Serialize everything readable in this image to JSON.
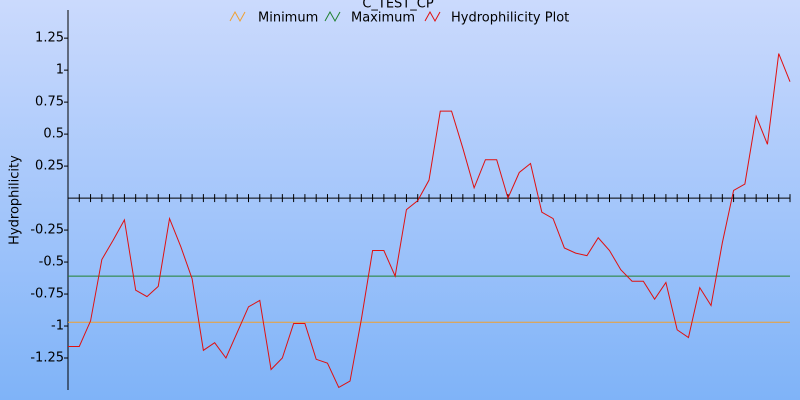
{
  "chart_data": {
    "type": "line",
    "title": "C_TEST_CP",
    "y_label": "Hydrophilicity",
    "x": [
      1,
      2,
      3,
      4,
      5,
      6,
      7,
      8,
      9,
      10,
      11,
      12,
      13,
      14,
      15,
      16,
      17,
      18,
      19,
      20,
      21,
      22,
      23,
      24,
      25,
      26,
      27,
      28,
      29,
      30,
      31,
      32,
      33,
      34,
      35,
      36,
      37,
      38,
      39,
      40,
      41,
      42,
      43,
      44,
      45,
      46,
      47,
      48,
      49,
      50,
      51,
      52,
      53,
      54,
      55,
      56,
      57,
      58,
      59,
      60,
      61,
      62,
      63,
      64,
      65
    ],
    "xlim": [
      1,
      65
    ],
    "ylim": [
      -1.5,
      1.47
    ],
    "yticks": [
      1.25,
      1,
      0.75,
      0.5,
      0.25,
      -0.25,
      -0.5,
      -0.75,
      -1,
      -1.25
    ],
    "series": [
      {
        "name": "Minimum",
        "color": "#f0a030",
        "values": [
          -0.97,
          -0.97,
          -0.97,
          -0.97,
          -0.97,
          -0.97,
          -0.97,
          -0.97,
          -0.97,
          -0.97,
          -0.97,
          -0.97,
          -0.97,
          -0.97,
          -0.97,
          -0.97,
          -0.97,
          -0.97,
          -0.97,
          -0.97,
          -0.97,
          -0.97,
          -0.97,
          -0.97,
          -0.97,
          -0.97,
          -0.97,
          -0.97,
          -0.97,
          -0.97,
          -0.97,
          -0.97,
          -0.97,
          -0.97,
          -0.97,
          -0.97,
          -0.97,
          -0.97,
          -0.97,
          -0.97,
          -0.97,
          -0.97,
          -0.97,
          -0.97,
          -0.97,
          -0.97,
          -0.97,
          -0.97,
          -0.97,
          -0.97,
          -0.97,
          -0.97,
          -0.97,
          -0.97,
          -0.97,
          -0.97,
          -0.97,
          -0.97,
          -0.97,
          -0.97,
          -0.97,
          -0.97,
          -0.97,
          -0.97,
          -0.97
        ]
      },
      {
        "name": "Maximum",
        "color": "#208030",
        "values": [
          -0.61,
          -0.61,
          -0.61,
          -0.61,
          -0.61,
          -0.61,
          -0.61,
          -0.61,
          -0.61,
          -0.61,
          -0.61,
          -0.61,
          -0.61,
          -0.61,
          -0.61,
          -0.61,
          -0.61,
          -0.61,
          -0.61,
          -0.61,
          -0.61,
          -0.61,
          -0.61,
          -0.61,
          -0.61,
          -0.61,
          -0.61,
          -0.61,
          -0.61,
          -0.61,
          -0.61,
          -0.61,
          -0.61,
          -0.61,
          -0.61,
          -0.61,
          -0.61,
          -0.61,
          -0.61,
          -0.61,
          -0.61,
          -0.61,
          -0.61,
          -0.61,
          -0.61,
          -0.61,
          -0.61,
          -0.61,
          -0.61,
          -0.61,
          -0.61,
          -0.61,
          -0.61,
          -0.61,
          -0.61,
          -0.61,
          -0.61,
          -0.61,
          -0.61,
          -0.61,
          -0.61,
          -0.61,
          -0.61,
          -0.61,
          -0.61
        ]
      },
      {
        "name": "Hydrophilicity Plot",
        "color": "#e01010",
        "values": [
          -1.16,
          -1.16,
          -0.96,
          -0.48,
          -0.33,
          -0.17,
          -0.72,
          -0.77,
          -0.69,
          -0.16,
          -0.38,
          -0.63,
          -1.19,
          -1.13,
          -1.25,
          -1.05,
          -0.85,
          -0.8,
          -1.34,
          -1.25,
          -0.98,
          -0.98,
          -1.26,
          -1.29,
          -1.48,
          -1.43,
          -0.95,
          -0.41,
          -0.41,
          -0.61,
          -0.09,
          -0.02,
          0.14,
          0.68,
          0.68,
          0.39,
          0.08,
          0.3,
          0.3,
          0,
          0.2,
          0.27,
          -0.11,
          -0.16,
          -0.39,
          -0.43,
          -0.45,
          -0.31,
          -0.41,
          -0.56,
          -0.65,
          -0.65,
          -0.79,
          -0.66,
          -1.03,
          -1.09,
          -0.7,
          -0.84,
          -0.35,
          0.06,
          0.11,
          0.64,
          0.42,
          1.13,
          0.91
        ]
      }
    ]
  }
}
